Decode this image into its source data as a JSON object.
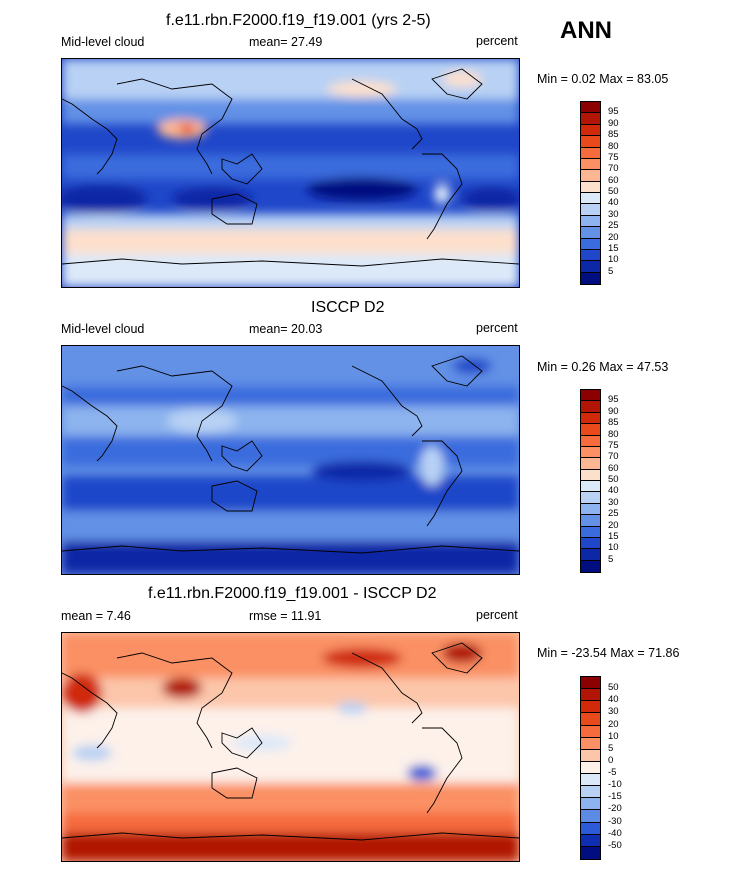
{
  "season": "ANN",
  "top": {
    "title": "f.e11.rbn.F2000.f19_f19.001 (yrs 2-5)",
    "left": "Mid-level cloud",
    "center": "mean=  27.49",
    "right": "percent",
    "minmax": "Min =   0.02 Max =  83.05",
    "colorbar": {
      "labels": [
        "95",
        "90",
        "85",
        "80",
        "75",
        "70",
        "60",
        "50",
        "40",
        "30",
        "25",
        "20",
        "15",
        "10",
        "5"
      ],
      "colors": [
        "#8b0000",
        "#b01505",
        "#d02a0a",
        "#e84a1c",
        "#f56b3d",
        "#fa9063",
        "#fcb692",
        "#fde0cc",
        "#dce9f9",
        "#b8d1f4",
        "#8db4ee",
        "#6291e6",
        "#3a6cdd",
        "#1f47c9",
        "#0c28a6",
        "#000e80"
      ]
    }
  },
  "middle": {
    "title": "ISCCP D2",
    "left": "Mid-level cloud",
    "center": "mean=  20.03",
    "right": "percent",
    "minmax": "Min =   0.26 Max =  47.53",
    "colorbar": {
      "labels": [
        "95",
        "90",
        "85",
        "80",
        "75",
        "70",
        "60",
        "50",
        "40",
        "30",
        "25",
        "20",
        "15",
        "10",
        "5"
      ],
      "colors": [
        "#8b0000",
        "#b01505",
        "#d02a0a",
        "#e84a1c",
        "#f56b3d",
        "#fa9063",
        "#fcb692",
        "#fde0cc",
        "#dce9f9",
        "#b8d1f4",
        "#8db4ee",
        "#6291e6",
        "#3a6cdd",
        "#1f47c9",
        "#0c28a6",
        "#000e80"
      ]
    }
  },
  "bottom": {
    "title": "f.e11.rbn.F2000.f19_f19.001 - ISCCP D2",
    "left": "mean =   7.46",
    "center": "rmse =  11.91",
    "right": "percent",
    "minmax": "Min = -23.54 Max =  71.86",
    "colorbar": {
      "labels": [
        "50",
        "40",
        "30",
        "20",
        "10",
        "5",
        "0",
        "-5",
        "-10",
        "-15",
        "-20",
        "-30",
        "-40",
        "-50"
      ],
      "colors": [
        "#8b0000",
        "#b01505",
        "#d02a0a",
        "#e84a1c",
        "#f56b3d",
        "#fa9063",
        "#fcc6aa",
        "#fdf1ea",
        "#dce9f9",
        "#b8d1f4",
        "#8db4ee",
        "#5c8be4",
        "#2d5ad6",
        "#0f2fb3",
        "#000e80"
      ]
    }
  }
}
